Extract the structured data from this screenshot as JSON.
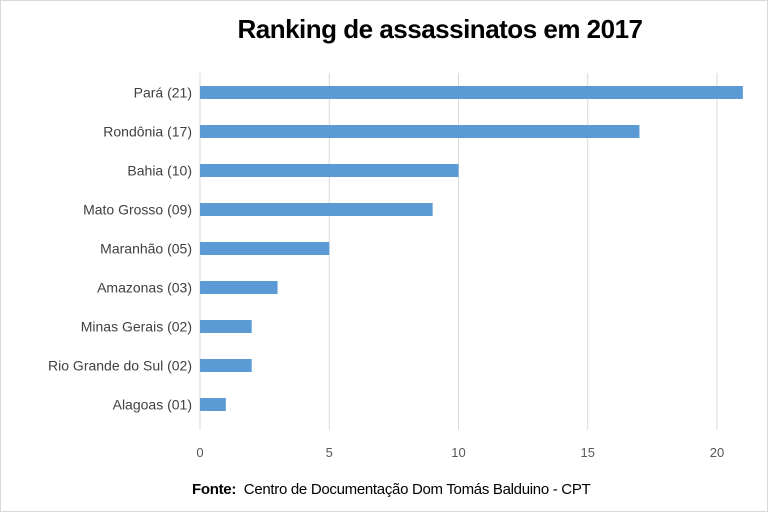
{
  "chart_data": {
    "type": "bar",
    "orientation": "horizontal",
    "title": "Ranking de assassinatos em 2017",
    "categories": [
      "Pará (21)",
      "Rondônia (17)",
      "Bahia (10)",
      "Mato Grosso (09)",
      "Maranhão (05)",
      "Amazonas (03)",
      "Minas Gerais (02)",
      "Rio Grande do Sul (02)",
      "Alagoas (01)"
    ],
    "values": [
      21,
      17,
      10,
      9,
      5,
      3,
      2,
      2,
      1
    ],
    "xlim": [
      0,
      21
    ],
    "xticks": [
      0,
      5,
      10,
      15,
      20
    ],
    "xlabel": "",
    "ylabel": "",
    "grid": true,
    "bar_color": "#5b9bd5",
    "grid_color": "#d9d9d9"
  },
  "source": {
    "label": "Fonte:",
    "text": "Centro de Documentação Dom Tomás Balduino - CPT"
  }
}
